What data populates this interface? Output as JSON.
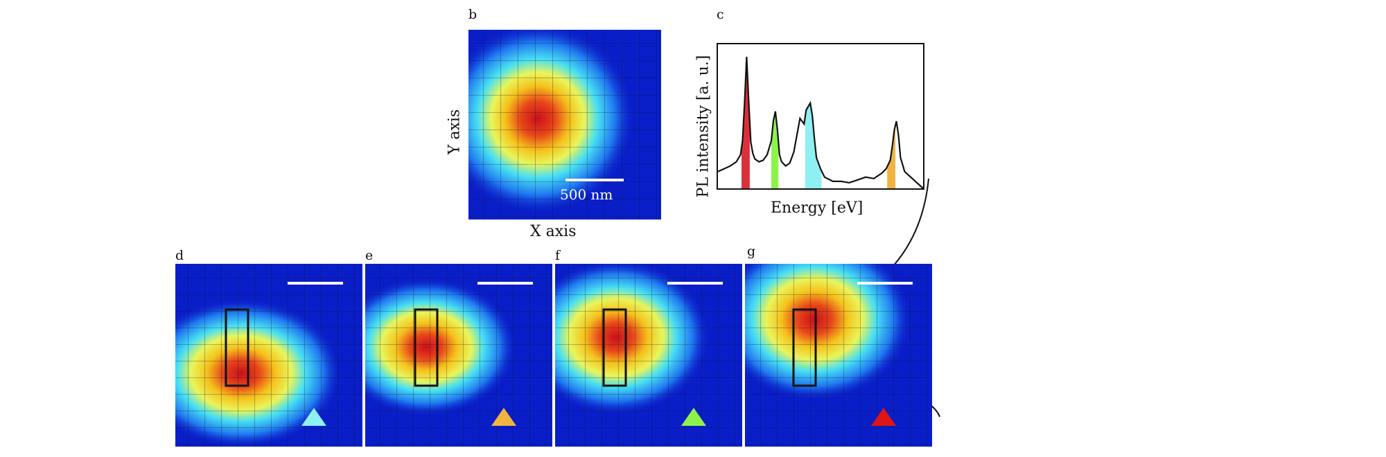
{
  "figure": {
    "panels": {
      "b": {
        "letter": "b",
        "x_label": "X axis",
        "y_label": "Y axis",
        "scale_bar": "500 nm"
      },
      "c": {
        "letter": "c",
        "x_label": "Energy [eV]",
        "y_label": "PL intensity [a. u.]"
      },
      "d": {
        "letter": "d",
        "marker_color": "#8ff0f4"
      },
      "e": {
        "letter": "e",
        "marker_color": "#f2b440"
      },
      "f": {
        "letter": "f",
        "marker_color": "#8ef24c"
      },
      "g": {
        "letter": "g",
        "marker_color": "#e01515"
      }
    },
    "colors": {
      "red": "#dc2f3c",
      "green": "#8ef24c",
      "cyan": "#8ff0f4",
      "orange": "#f2b440",
      "map_background": "#0a1ec8"
    }
  },
  "chart_data": {
    "type": "line",
    "xlabel": "Energy [eV]",
    "ylabel": "PL intensity [a. u.]",
    "x_ticks": "none",
    "y_ticks": "none",
    "x": [
      0,
      0.03,
      0.06,
      0.09,
      0.11,
      0.12,
      0.13,
      0.14,
      0.15,
      0.16,
      0.17,
      0.18,
      0.2,
      0.22,
      0.24,
      0.26,
      0.27,
      0.28,
      0.29,
      0.3,
      0.31,
      0.33,
      0.35,
      0.37,
      0.39,
      0.4,
      0.42,
      0.43,
      0.45,
      0.46,
      0.47,
      0.48,
      0.5,
      0.52,
      0.56,
      0.6,
      0.64,
      0.68,
      0.72,
      0.76,
      0.8,
      0.82,
      0.84,
      0.85,
      0.86,
      0.87,
      0.88,
      0.89,
      0.91,
      0.94,
      0.97,
      1.0
    ],
    "y": [
      0.12,
      0.14,
      0.16,
      0.19,
      0.24,
      0.34,
      0.62,
      0.94,
      0.62,
      0.33,
      0.25,
      0.21,
      0.19,
      0.2,
      0.24,
      0.34,
      0.48,
      0.55,
      0.42,
      0.24,
      0.19,
      0.16,
      0.18,
      0.26,
      0.42,
      0.5,
      0.46,
      0.56,
      0.61,
      0.52,
      0.36,
      0.22,
      0.14,
      0.08,
      0.05,
      0.05,
      0.04,
      0.06,
      0.08,
      0.07,
      0.11,
      0.14,
      0.2,
      0.3,
      0.42,
      0.48,
      0.38,
      0.22,
      0.12,
      0.08,
      0.04,
      0.0
    ],
    "ylim": [
      0,
      1
    ],
    "highlight_bands": [
      {
        "x_start": 0.115,
        "x_end": 0.155,
        "color": "#dc2f3c"
      },
      {
        "x_start": 0.26,
        "x_end": 0.295,
        "color": "#8ef24c"
      },
      {
        "x_start": 0.425,
        "x_end": 0.505,
        "color": "#8ff0f4"
      },
      {
        "x_start": 0.825,
        "x_end": 0.865,
        "color": "#f2b440"
      }
    ],
    "grid": false,
    "legend": "none"
  }
}
